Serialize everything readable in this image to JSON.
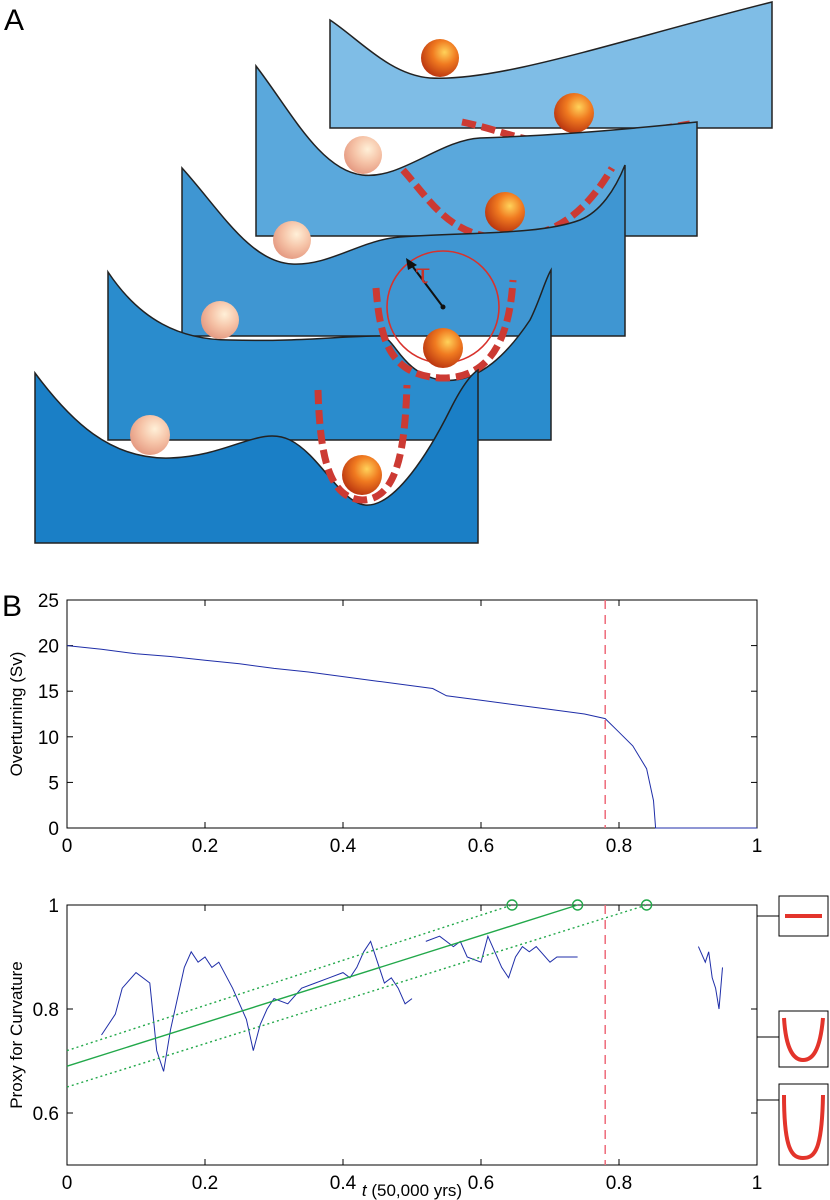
{
  "panel_labels": {
    "a": "A",
    "b": "B"
  },
  "illustration": {
    "tau_symbol": "τ",
    "colors": {
      "slice_back": "#7fbde6",
      "slice_2": "#5aa8dc",
      "slice_3": "#3f96d2",
      "slice_4": "#2a8ccd",
      "slice_front": "#1a7fc6",
      "ball": "#e0581a",
      "ghost_ball": "#f2b9a2",
      "curvature_dash": "#cc3a33"
    }
  },
  "chart_data": [
    {
      "type": "line",
      "ylabel": "Overturning (Sv)",
      "xlim": [
        0,
        1
      ],
      "ylim": [
        0,
        25
      ],
      "xticks": [
        "0",
        "0.2",
        "0.4",
        "0.6",
        "0.8",
        "1"
      ],
      "yticks": [
        "0",
        "5",
        "10",
        "15",
        "20",
        "25"
      ],
      "grid": false,
      "vline_x": 0.78,
      "series": [
        {
          "color": "#1f2ea8",
          "x": [
            0,
            0.05,
            0.1,
            0.15,
            0.2,
            0.25,
            0.3,
            0.35,
            0.4,
            0.45,
            0.5,
            0.53,
            0.55,
            0.6,
            0.65,
            0.7,
            0.75,
            0.78,
            0.8,
            0.82,
            0.84,
            0.85,
            0.853,
            1.0
          ],
          "y": [
            20,
            19.6,
            19.1,
            18.8,
            18.4,
            18.0,
            17.5,
            17.1,
            16.6,
            16.1,
            15.6,
            15.3,
            14.5,
            14.0,
            13.5,
            13.0,
            12.5,
            12.0,
            10.5,
            9.0,
            6.5,
            3.0,
            0,
            0
          ]
        }
      ]
    },
    {
      "type": "line",
      "xlabel": "t (50,000 yrs)",
      "xlabel_italic": "t",
      "xlabel_rest": " (50,000 yrs)",
      "ylabel": "Proxy for Curvature",
      "xlim": [
        0,
        1
      ],
      "ylim": [
        0.5,
        1
      ],
      "xticks": [
        "0",
        "0.2",
        "0.4",
        "0.6",
        "0.8",
        "1"
      ],
      "yticks": [
        "0.6",
        "0.8",
        "1"
      ],
      "grid": false,
      "vline_x": 0.78,
      "series": [
        {
          "color": "#1f2ea8",
          "x": [
            0.05,
            0.07,
            0.08,
            0.1,
            0.12,
            0.13,
            0.14,
            0.15,
            0.17,
            0.18,
            0.19,
            0.2,
            0.21,
            0.22,
            0.24,
            0.26,
            0.27,
            0.28,
            0.29,
            0.3,
            0.32,
            0.34,
            0.36,
            0.38,
            0.4,
            0.41,
            0.42,
            0.43,
            0.44,
            0.45,
            0.46,
            0.47,
            0.48,
            0.49,
            0.5
          ],
          "y": [
            0.75,
            0.79,
            0.84,
            0.87,
            0.85,
            0.72,
            0.68,
            0.76,
            0.88,
            0.91,
            0.89,
            0.9,
            0.88,
            0.89,
            0.84,
            0.78,
            0.72,
            0.77,
            0.8,
            0.82,
            0.81,
            0.84,
            0.85,
            0.86,
            0.87,
            0.86,
            0.88,
            0.91,
            0.93,
            0.89,
            0.85,
            0.86,
            0.84,
            0.81,
            0.82
          ]
        },
        {
          "color": "#1f2ea8",
          "x": [
            0.52,
            0.54,
            0.56,
            0.57,
            0.58,
            0.6,
            0.61,
            0.62,
            0.63,
            0.64,
            0.65,
            0.66,
            0.67,
            0.68,
            0.7,
            0.71,
            0.72,
            0.73,
            0.74
          ],
          "y": [
            0.93,
            0.94,
            0.92,
            0.93,
            0.9,
            0.89,
            0.94,
            0.91,
            0.88,
            0.86,
            0.9,
            0.92,
            0.91,
            0.92,
            0.89,
            0.9,
            0.9,
            0.9,
            0.9
          ]
        },
        {
          "color": "#1f2ea8",
          "x": [
            0.915,
            0.925,
            0.93,
            0.935,
            0.94,
            0.945,
            0.95
          ],
          "y": [
            0.92,
            0.89,
            0.91,
            0.86,
            0.84,
            0.8,
            0.88
          ]
        },
        {
          "color": "#22a84a",
          "x": [
            0,
            0.74
          ],
          "y": [
            0.69,
            1.0
          ]
        },
        {
          "color": "#22a84a",
          "dashed": true,
          "x": [
            0,
            0.645
          ],
          "y": [
            0.72,
            1.0
          ]
        },
        {
          "color": "#22a84a",
          "dashed": true,
          "x": [
            0,
            0.84
          ],
          "y": [
            0.65,
            1.0
          ]
        }
      ],
      "markers": {
        "color": "#22a84a",
        "x": [
          0.645,
          0.74,
          0.84
        ],
        "y": [
          1,
          1,
          1
        ]
      }
    }
  ]
}
